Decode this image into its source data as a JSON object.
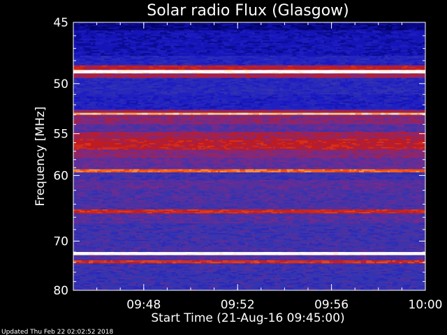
{
  "chart_data": {
    "type": "heatmap",
    "title": "Solar radio Flux (Glasgow)",
    "xlabel": "Start Time (21-Aug-16 09:45:00)",
    "ylabel": "Frequency [MHz]",
    "x_range": [
      "09:45",
      "10:00"
    ],
    "x_ticks": [
      "09:48",
      "09:52",
      "09:56",
      "10:00"
    ],
    "y_range": [
      45,
      80
    ],
    "y_ticks": [
      "45",
      "50",
      "55",
      "60",
      "70",
      "80"
    ],
    "y_minor_ticks": [
      46,
      47,
      48,
      49,
      51,
      52,
      53,
      54,
      56,
      57,
      58,
      59,
      62,
      64,
      66,
      68,
      72,
      74,
      76,
      78
    ],
    "y_scale": "reciprocal",
    "colormap": [
      "#000060",
      "#1818c8",
      "#3535b0",
      "#7a2a8a",
      "#c41a1a",
      "#ff5a10",
      "#ffd080",
      "#ffffff"
    ],
    "bands": [
      {
        "from": 45.0,
        "to": 45.6,
        "level": 0.05
      },
      {
        "from": 45.6,
        "to": 47.6,
        "level": 0.12
      },
      {
        "from": 47.6,
        "to": 48.4,
        "level": 0.2
      },
      {
        "from": 48.4,
        "to": 48.8,
        "level": 0.55
      },
      {
        "from": 48.8,
        "to": 49.1,
        "level": 1.0
      },
      {
        "from": 49.1,
        "to": 49.5,
        "level": 0.5
      },
      {
        "from": 49.5,
        "to": 51.0,
        "level": 0.22
      },
      {
        "from": 51.0,
        "to": 52.5,
        "level": 0.18
      },
      {
        "from": 52.5,
        "to": 52.8,
        "level": 0.5
      },
      {
        "from": 52.8,
        "to": 53.0,
        "level": 0.85
      },
      {
        "from": 53.0,
        "to": 54.0,
        "level": 0.45
      },
      {
        "from": 54.0,
        "to": 54.8,
        "level": 0.36
      },
      {
        "from": 54.8,
        "to": 55.6,
        "level": 0.5
      },
      {
        "from": 55.6,
        "to": 56.8,
        "level": 0.56
      },
      {
        "from": 56.8,
        "to": 57.8,
        "level": 0.45
      },
      {
        "from": 57.8,
        "to": 59.2,
        "level": 0.38
      },
      {
        "from": 59.2,
        "to": 59.6,
        "level": 0.72
      },
      {
        "from": 59.6,
        "to": 60.6,
        "level": 0.3
      },
      {
        "from": 60.6,
        "to": 61.8,
        "level": 0.36
      },
      {
        "from": 61.8,
        "to": 64.8,
        "level": 0.33
      },
      {
        "from": 64.8,
        "to": 65.4,
        "level": 0.6
      },
      {
        "from": 65.4,
        "to": 67.0,
        "level": 0.35
      },
      {
        "from": 67.0,
        "to": 71.0,
        "level": 0.3
      },
      {
        "from": 71.0,
        "to": 72.0,
        "level": 0.32
      },
      {
        "from": 72.0,
        "to": 72.6,
        "level": 1.0
      },
      {
        "from": 72.6,
        "to": 73.6,
        "level": 0.35
      },
      {
        "from": 73.6,
        "to": 74.2,
        "level": 0.62
      },
      {
        "from": 74.2,
        "to": 76.0,
        "level": 0.3
      },
      {
        "from": 76.0,
        "to": 80.0,
        "level": 0.28
      }
    ],
    "grid": false,
    "legend": "none"
  },
  "footer": "Updated Thu Feb 22 02:02:52 2018"
}
